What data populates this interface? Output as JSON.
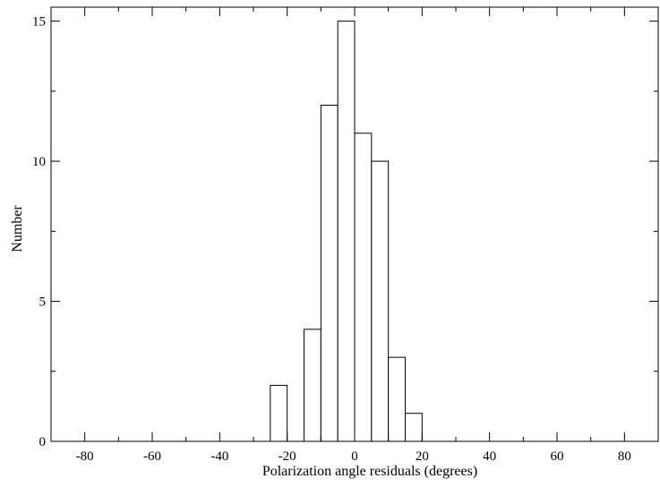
{
  "chart_data": {
    "type": "bar",
    "title": "",
    "xlabel": "Polarization angle residuals (degrees)",
    "ylabel": "Number",
    "xlim": [
      -90,
      90
    ],
    "ylim": [
      0,
      15.5
    ],
    "x_ticks": [
      -80,
      -60,
      -40,
      -20,
      0,
      20,
      40,
      60,
      80
    ],
    "x_tick_labels": [
      "-80",
      "-60",
      "-40",
      "-20",
      "0",
      "20",
      "40",
      "60",
      "80"
    ],
    "y_ticks": [
      0,
      5,
      10,
      15
    ],
    "y_tick_labels": [
      "0",
      "5",
      "10",
      "15"
    ],
    "bin_width": 5,
    "bins": [
      {
        "from": -25,
        "to": -20,
        "count": 2
      },
      {
        "from": -20,
        "to": -15,
        "count": 0
      },
      {
        "from": -15,
        "to": -10,
        "count": 4
      },
      {
        "from": -10,
        "to": -5,
        "count": 12
      },
      {
        "from": -5,
        "to": 0,
        "count": 15
      },
      {
        "from": 0,
        "to": 5,
        "count": 11
      },
      {
        "from": 5,
        "to": 10,
        "count": 10
      },
      {
        "from": 10,
        "to": 15,
        "count": 3
      },
      {
        "from": 15,
        "to": 20,
        "count": 1
      }
    ],
    "grid": false,
    "legend": "none",
    "bar_fill": "#ffffff",
    "bar_stroke": "#000000"
  }
}
